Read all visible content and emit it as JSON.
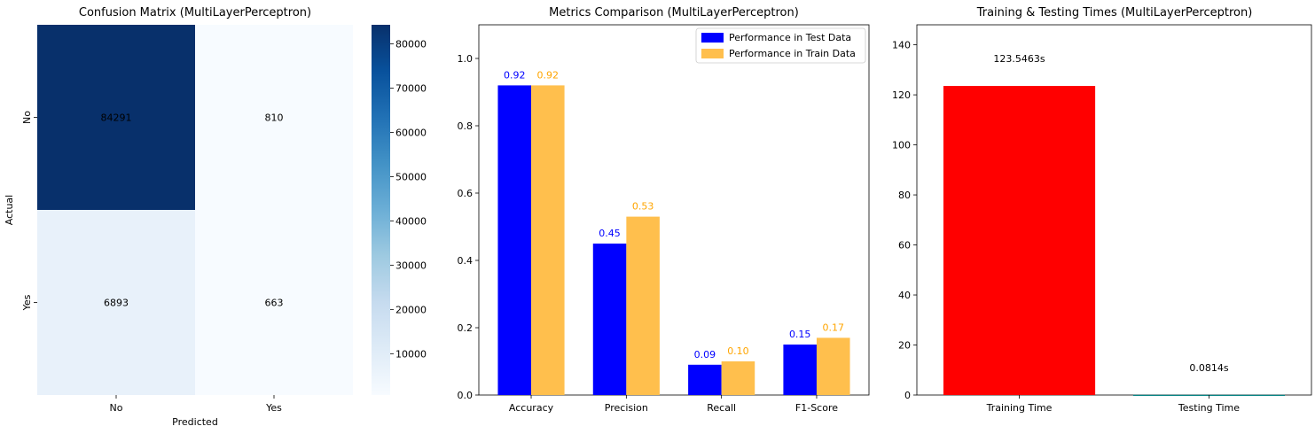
{
  "chart_data": [
    {
      "type": "heatmap",
      "title": "Confusion Matrix (MultiLayerPerceptron)",
      "xlabel": "Predicted",
      "ylabel": "Actual",
      "x_categories": [
        "No",
        "Yes"
      ],
      "y_categories": [
        "No",
        "Yes"
      ],
      "values": [
        [
          84291,
          810
        ],
        [
          6893,
          663
        ]
      ],
      "colormap": "Blues",
      "colorbar": {
        "range": [
          663,
          84291
        ],
        "ticks": [
          10000,
          20000,
          30000,
          40000,
          50000,
          60000,
          70000,
          80000
        ]
      }
    },
    {
      "type": "bar",
      "title": "Metrics Comparison (MultiLayerPerceptron)",
      "categories": [
        "Accuracy",
        "Precision",
        "Recall",
        "F1-Score"
      ],
      "series": [
        {
          "name": "Performance in Test Data",
          "values": [
            0.92,
            0.45,
            0.09,
            0.15
          ],
          "labels": [
            "0.92",
            "0.45",
            "0.09",
            "0.15"
          ],
          "color": "#0000ff"
        },
        {
          "name": "Performance in Train Data",
          "values": [
            0.92,
            0.53,
            0.1,
            0.17
          ],
          "labels": [
            "0.92",
            "0.53",
            "0.10",
            "0.17"
          ],
          "color": "#ffa500"
        }
      ],
      "ylim": [
        0,
        1.1
      ],
      "yticks": [
        0.0,
        0.2,
        0.4,
        0.6,
        0.8,
        1.0
      ],
      "ytick_labels": [
        "0.0",
        "0.2",
        "0.4",
        "0.6",
        "0.8",
        "1.0"
      ],
      "legend": "top-right"
    },
    {
      "type": "bar",
      "title": "Training & Testing Times (MultiLayerPerceptron)",
      "categories": [
        "Training Time",
        "Testing Time"
      ],
      "values": [
        123.5463,
        0.0814
      ],
      "labels": [
        "123.5463s",
        "0.0814s"
      ],
      "colors": [
        "#ff0000",
        "#008080"
      ],
      "ylim": [
        0,
        148
      ],
      "yticks": [
        0,
        20,
        40,
        60,
        80,
        100,
        120,
        140
      ]
    }
  ]
}
